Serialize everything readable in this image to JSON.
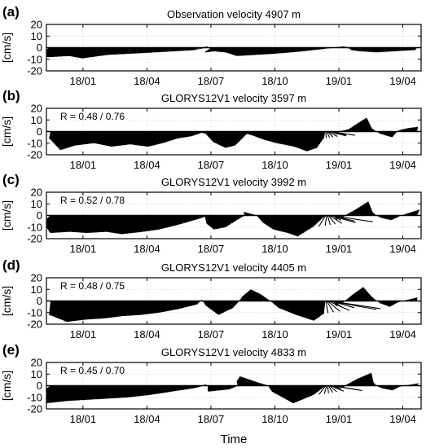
{
  "xlabel": "Time",
  "chart_data": [
    {
      "type": "stick",
      "panel_label": "(a)",
      "title": "Observation velocity 4907 m",
      "annotation": "",
      "ylabel": "[cm/s]",
      "ylim": [
        -20,
        20
      ],
      "yticks": [
        -20,
        -10,
        0,
        10,
        20
      ],
      "xticks": [
        "18/01",
        "18/04",
        "18/07",
        "18/10",
        "19/01",
        "19/04"
      ],
      "grid": true,
      "keyframes": [
        [
          0,
          -5
        ],
        [
          2,
          -8
        ],
        [
          4,
          -7
        ],
        [
          6,
          -9
        ],
        [
          8,
          -6
        ],
        [
          10,
          -5
        ],
        [
          12,
          -4
        ],
        [
          14,
          -3
        ],
        [
          16,
          -2
        ],
        [
          17,
          1
        ],
        [
          17.6,
          -4
        ],
        [
          18.5,
          -3
        ],
        [
          20,
          -4
        ],
        [
          22,
          -7
        ],
        [
          24,
          -6
        ],
        [
          26,
          -5
        ],
        [
          28,
          -3
        ],
        [
          30,
          -1
        ],
        [
          32,
          1
        ],
        [
          33,
          -2
        ],
        [
          34,
          -3
        ],
        [
          36,
          -4
        ],
        [
          38,
          -3
        ],
        [
          40,
          -2
        ]
      ],
      "angle_keyframes": [
        [
          0,
          -150
        ],
        [
          8,
          -150
        ],
        [
          12,
          -140
        ],
        [
          16,
          -130
        ],
        [
          17,
          60
        ],
        [
          17.6,
          -140
        ],
        [
          26,
          -150
        ],
        [
          30,
          -110
        ],
        [
          32,
          60
        ],
        [
          33,
          -120
        ],
        [
          40,
          -120
        ]
      ]
    },
    {
      "type": "stick",
      "panel_label": "(b)",
      "title": "GLORYS12V1 velocity 3597 m",
      "annotation": "R = 0.48 / 0.76",
      "ylabel": "[cm/s]",
      "ylim": [
        -20,
        20
      ],
      "yticks": [
        -20,
        -10,
        0,
        10,
        20
      ],
      "xticks": [
        "18/01",
        "18/04",
        "18/07",
        "18/10",
        "19/01",
        "19/04"
      ],
      "grid": true,
      "keyframes": [
        [
          0,
          -6
        ],
        [
          1.5,
          -16
        ],
        [
          3,
          -12
        ],
        [
          5,
          -10
        ],
        [
          7,
          -13
        ],
        [
          9,
          -11
        ],
        [
          11,
          -13
        ],
        [
          12.5,
          -10
        ],
        [
          14,
          -6
        ],
        [
          15.5,
          -4
        ],
        [
          16.5,
          -1
        ],
        [
          17,
          -2
        ],
        [
          18,
          -9
        ],
        [
          19.5,
          -14
        ],
        [
          20.5,
          -12
        ],
        [
          21.5,
          -2
        ],
        [
          22,
          -3
        ],
        [
          23.5,
          -7
        ],
        [
          25,
          -10
        ],
        [
          27,
          -13
        ],
        [
          28.5,
          -17
        ],
        [
          29.5,
          -14
        ],
        [
          30,
          -6
        ],
        [
          31,
          -1
        ],
        [
          32.5,
          2
        ],
        [
          33.5,
          8
        ],
        [
          34.2,
          12
        ],
        [
          35,
          3
        ],
        [
          36,
          -2
        ],
        [
          37.2,
          -5
        ],
        [
          38,
          1
        ],
        [
          39,
          3
        ],
        [
          40,
          4
        ]
      ],
      "angle_keyframes": [
        [
          0,
          -100
        ],
        [
          30,
          -100
        ],
        [
          31,
          80
        ],
        [
          40,
          80
        ]
      ]
    },
    {
      "type": "stick",
      "panel_label": "(c)",
      "title": "GLORYS12V1 velocity 3992 m",
      "annotation": "R = 0.52 / 0.78",
      "ylabel": "[cm/s]",
      "ylim": [
        -20,
        20
      ],
      "yticks": [
        -20,
        -10,
        0,
        10,
        20
      ],
      "xticks": [
        "18/01",
        "18/04",
        "18/07",
        "18/10",
        "19/01",
        "19/04"
      ],
      "grid": true,
      "keyframes": [
        [
          0,
          -6
        ],
        [
          2,
          -15
        ],
        [
          4,
          -14
        ],
        [
          6,
          -15
        ],
        [
          8,
          -14
        ],
        [
          10,
          -16
        ],
        [
          12,
          -14
        ],
        [
          13.5,
          -12
        ],
        [
          15,
          -8
        ],
        [
          16.5,
          -3
        ],
        [
          17,
          -1
        ],
        [
          18,
          -7
        ],
        [
          19.5,
          -12
        ],
        [
          20.5,
          -10
        ],
        [
          21,
          -2
        ],
        [
          21.5,
          3
        ],
        [
          22.5,
          0
        ],
        [
          24,
          -6
        ],
        [
          26,
          -12
        ],
        [
          28,
          -15
        ],
        [
          29.5,
          -18
        ],
        [
          30,
          -10
        ],
        [
          31,
          -3
        ],
        [
          32,
          -1
        ],
        [
          33,
          5
        ],
        [
          34,
          12
        ],
        [
          35,
          3
        ],
        [
          36,
          -2
        ],
        [
          37,
          -4
        ],
        [
          38,
          -1
        ],
        [
          39,
          2
        ],
        [
          40,
          5
        ]
      ],
      "angle_keyframes": [
        [
          0,
          -130
        ],
        [
          30,
          -130
        ],
        [
          31,
          70
        ],
        [
          40,
          70
        ]
      ]
    },
    {
      "type": "stick",
      "panel_label": "(d)",
      "title": "GLORYS12V1 velocity 4405 m",
      "annotation": "R = 0.48 / 0.75",
      "ylabel": "[cm/s]",
      "ylim": [
        -20,
        20
      ],
      "yticks": [
        -20,
        -10,
        0,
        10,
        20
      ],
      "xticks": [
        "18/01",
        "18/04",
        "18/07",
        "18/10",
        "19/01",
        "19/04"
      ],
      "grid": true,
      "keyframes": [
        [
          0,
          -12
        ],
        [
          2,
          -18
        ],
        [
          4,
          -16
        ],
        [
          6,
          -15
        ],
        [
          8,
          -13
        ],
        [
          10,
          -12
        ],
        [
          12,
          -10
        ],
        [
          14,
          -7
        ],
        [
          16,
          -3
        ],
        [
          16.5,
          1
        ],
        [
          17,
          -4
        ],
        [
          18.5,
          -12
        ],
        [
          20,
          -6
        ],
        [
          21,
          4
        ],
        [
          22,
          10
        ],
        [
          23,
          6
        ],
        [
          25,
          -6
        ],
        [
          27,
          -12
        ],
        [
          29,
          -17
        ],
        [
          30,
          -11
        ],
        [
          31,
          -3
        ],
        [
          32,
          -1
        ],
        [
          33,
          6
        ],
        [
          34,
          12
        ],
        [
          35,
          4
        ],
        [
          36,
          -2
        ],
        [
          37,
          -5
        ],
        [
          38,
          -1
        ],
        [
          40,
          3
        ]
      ],
      "angle_keyframes": [
        [
          0,
          -95
        ],
        [
          30,
          -95
        ],
        [
          31,
          85
        ],
        [
          40,
          85
        ]
      ]
    },
    {
      "type": "stick",
      "panel_label": "(e)",
      "title": "GLORYS12V1 velocity 4833 m",
      "annotation": "R = 0.45 / 0.70",
      "ylabel": "[cm/s]",
      "ylim": [
        -20,
        20
      ],
      "yticks": [
        -20,
        -10,
        0,
        10,
        20
      ],
      "xticks": [
        "18/01",
        "18/04",
        "18/07",
        "18/10",
        "19/01",
        "19/04"
      ],
      "grid": true,
      "keyframes": [
        [
          0,
          -5
        ],
        [
          2,
          -15
        ],
        [
          4,
          -13
        ],
        [
          6,
          -12
        ],
        [
          8,
          -11
        ],
        [
          10,
          -10
        ],
        [
          12,
          -8
        ],
        [
          14,
          -5
        ],
        [
          16,
          -2
        ],
        [
          17,
          1
        ],
        [
          18,
          -5
        ],
        [
          20,
          -3
        ],
        [
          21,
          4
        ],
        [
          22,
          8
        ],
        [
          23,
          3
        ],
        [
          25,
          -5
        ],
        [
          27,
          -10
        ],
        [
          29,
          -15
        ],
        [
          30,
          -8
        ],
        [
          31,
          -2
        ],
        [
          32,
          -1
        ],
        [
          33,
          6
        ],
        [
          34,
          11
        ],
        [
          35,
          3
        ],
        [
          36,
          -2
        ],
        [
          37,
          -4
        ],
        [
          38,
          -1
        ],
        [
          40,
          2
        ]
      ],
      "angle_keyframes": [
        [
          0,
          -135
        ],
        [
          30,
          -135
        ],
        [
          31,
          60
        ],
        [
          40,
          60
        ]
      ]
    }
  ]
}
